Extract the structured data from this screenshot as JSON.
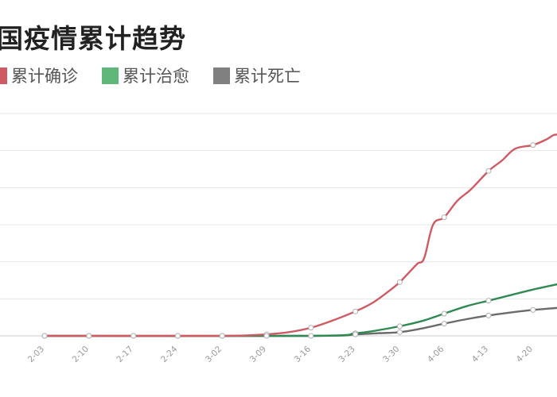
{
  "chart_data": {
    "type": "line",
    "title": "国疫情累计趋势",
    "xlabel": "",
    "ylabel": "",
    "categories": [
      "2-03",
      "2-10",
      "2-17",
      "2-24",
      "3-02",
      "3-09",
      "3-16",
      "3-23",
      "3-30",
      "4-06",
      "4-13",
      "4-20"
    ],
    "series": [
      {
        "name": "累计确诊",
        "color": "#cf5a63",
        "points": [
          [
            0,
            0
          ],
          [
            1,
            0
          ],
          [
            2,
            0
          ],
          [
            3,
            0
          ],
          [
            4,
            0
          ],
          [
            4.5,
            0.01
          ],
          [
            5,
            0.04
          ],
          [
            5.5,
            0.1
          ],
          [
            6,
            0.22
          ],
          [
            6.5,
            0.42
          ],
          [
            7,
            0.66
          ],
          [
            7.4,
            0.9
          ],
          [
            7.8,
            1.25
          ],
          [
            8,
            1.45
          ],
          [
            8.2,
            1.7
          ],
          [
            8.4,
            1.95
          ],
          [
            8.55,
            2.1
          ],
          [
            8.75,
            3.0
          ],
          [
            9,
            3.2
          ],
          [
            9.3,
            3.65
          ],
          [
            9.6,
            3.95
          ],
          [
            10,
            4.45
          ],
          [
            10.3,
            4.73
          ],
          [
            10.6,
            5.05
          ],
          [
            11,
            5.15
          ],
          [
            11.3,
            5.3
          ],
          [
            11.5,
            5.43
          ],
          [
            11.75,
            5.4
          ]
        ]
      },
      {
        "name": "累计治愈",
        "color": "#2f8a52",
        "points": [
          [
            0,
            0
          ],
          [
            6,
            0
          ],
          [
            7,
            0.07
          ],
          [
            7.5,
            0.15
          ],
          [
            8,
            0.26
          ],
          [
            8.5,
            0.4
          ],
          [
            9,
            0.6
          ],
          [
            9.5,
            0.8
          ],
          [
            10,
            0.95
          ],
          [
            10.5,
            1.1
          ],
          [
            11,
            1.25
          ],
          [
            11.5,
            1.38
          ],
          [
            11.75,
            1.45
          ]
        ]
      },
      {
        "name": "累计死亡",
        "color": "#6b6b6b",
        "points": [
          [
            0,
            0
          ],
          [
            6,
            0
          ],
          [
            7,
            0.04
          ],
          [
            7.5,
            0.07
          ],
          [
            8,
            0.1
          ],
          [
            8.5,
            0.2
          ],
          [
            9,
            0.33
          ],
          [
            9.5,
            0.45
          ],
          [
            10,
            0.55
          ],
          [
            10.5,
            0.63
          ],
          [
            11,
            0.7
          ],
          [
            11.5,
            0.75
          ],
          [
            11.75,
            0.78
          ]
        ]
      }
    ],
    "markers": [
      {
        "series": 0,
        "x": [
          0,
          1,
          2,
          3,
          4,
          5,
          6,
          7,
          8,
          9,
          10,
          11
        ]
      },
      {
        "series": 1,
        "x": [
          0,
          1,
          2,
          3,
          4,
          5,
          6,
          7,
          8,
          9,
          10
        ]
      },
      {
        "series": 2,
        "x": [
          7,
          8,
          9,
          10,
          11
        ]
      }
    ],
    "ylim": [
      0,
      6
    ],
    "grid": true,
    "legend_position": "top-left"
  }
}
